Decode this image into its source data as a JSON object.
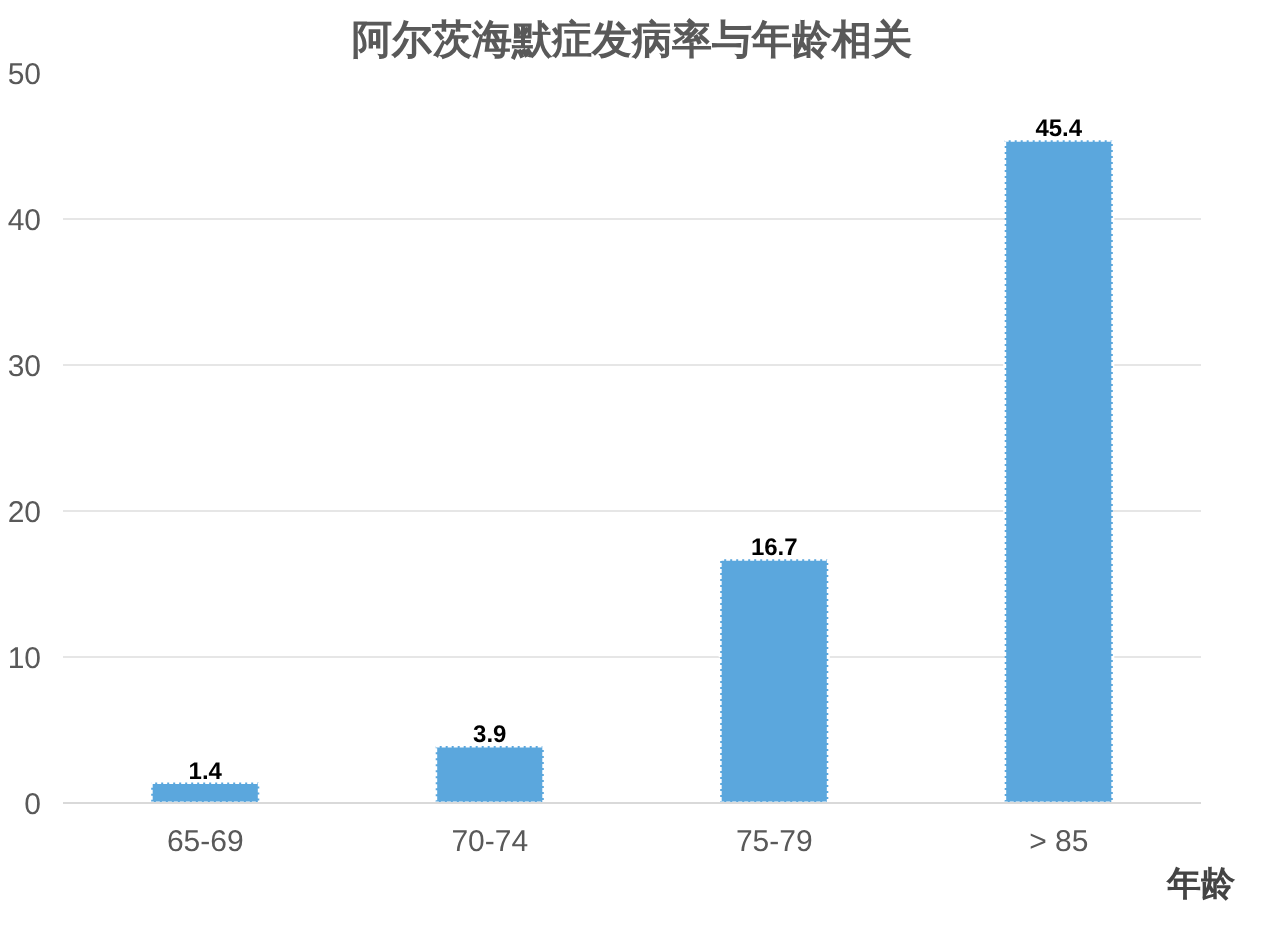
{
  "chart_data": {
    "type": "bar",
    "title": "阿尔茨海默症发病率与年龄相关",
    "xlabel": "年龄",
    "categories": [
      "65-69",
      "70-74",
      "75-79",
      "> 85"
    ],
    "values": [
      1.4,
      3.9,
      16.7,
      45.4
    ],
    "color": "#5ba7dd",
    "ylim": [
      0,
      50
    ],
    "yticks": [
      0,
      10,
      20,
      30,
      40,
      50
    ],
    "grid": "y",
    "data_labels": true
  }
}
